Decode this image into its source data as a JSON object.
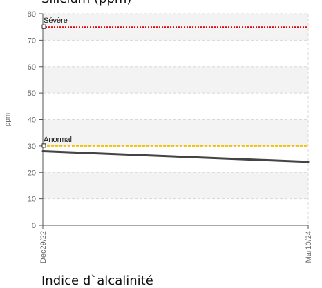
{
  "page": {
    "chart_title": "Silicium (ppm)",
    "next_chart_title": "Indice d`alcalinité"
  },
  "chart_data": {
    "type": "line",
    "title": "Silicium (ppm)",
    "ylabel": "ppm",
    "xlabel": "",
    "ylim": [
      0,
      80
    ],
    "yticks": [
      0,
      10,
      20,
      30,
      40,
      50,
      60,
      70,
      80
    ],
    "x_categories": [
      "Dec29/22",
      "Mar10/24"
    ],
    "grid": true,
    "series": [
      {
        "values": [
          28,
          24
        ],
        "color": "#444444"
      }
    ],
    "thresholds": [
      {
        "label": "Sévère",
        "value": 75,
        "color": "#e8000b",
        "style": "dotted"
      },
      {
        "label": "Anormal",
        "value": 30,
        "color": "#f2c200",
        "style": "dashed"
      }
    ]
  }
}
